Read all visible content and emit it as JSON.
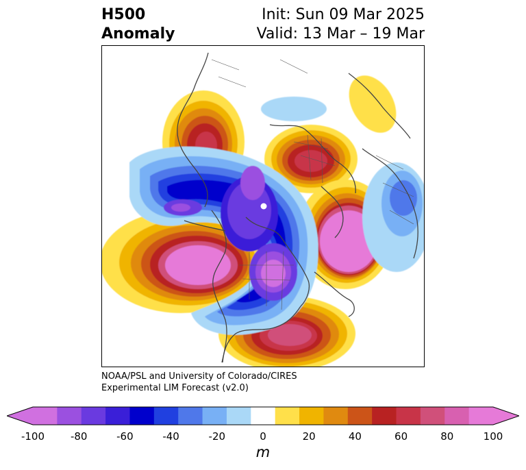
{
  "title": {
    "left_line1": "H500",
    "left_line2": "Anomaly",
    "init": "Init: Sun 09 Mar 2025",
    "valid": "Valid: 13 Mar – 19 Mar"
  },
  "credit": {
    "line1": "NOAA/PSL and University of Colorado/CIRES",
    "line2": "Experimental LIM Forecast (v2.0)"
  },
  "colorbar": {
    "unit": "m",
    "ticks": [
      "-100",
      "-80",
      "-60",
      "-40",
      "-20",
      "0",
      "20",
      "40",
      "60",
      "80",
      "100"
    ],
    "colors": [
      "#d070e0",
      "#9b50e0",
      "#6a3ae0",
      "#3a1fd8",
      "#0000cc",
      "#2040e0",
      "#4f78ea",
      "#78b0f5",
      "#aad8f7",
      "#ffffff",
      "#ffe04a",
      "#f0b400",
      "#e08a10",
      "#cc5418",
      "#b82222",
      "#c83448",
      "#d0507a",
      "#d860b0",
      "#e67ad8"
    ],
    "extend_low_color": "#d070e0",
    "extend_high_color": "#e67ad8"
  }
}
